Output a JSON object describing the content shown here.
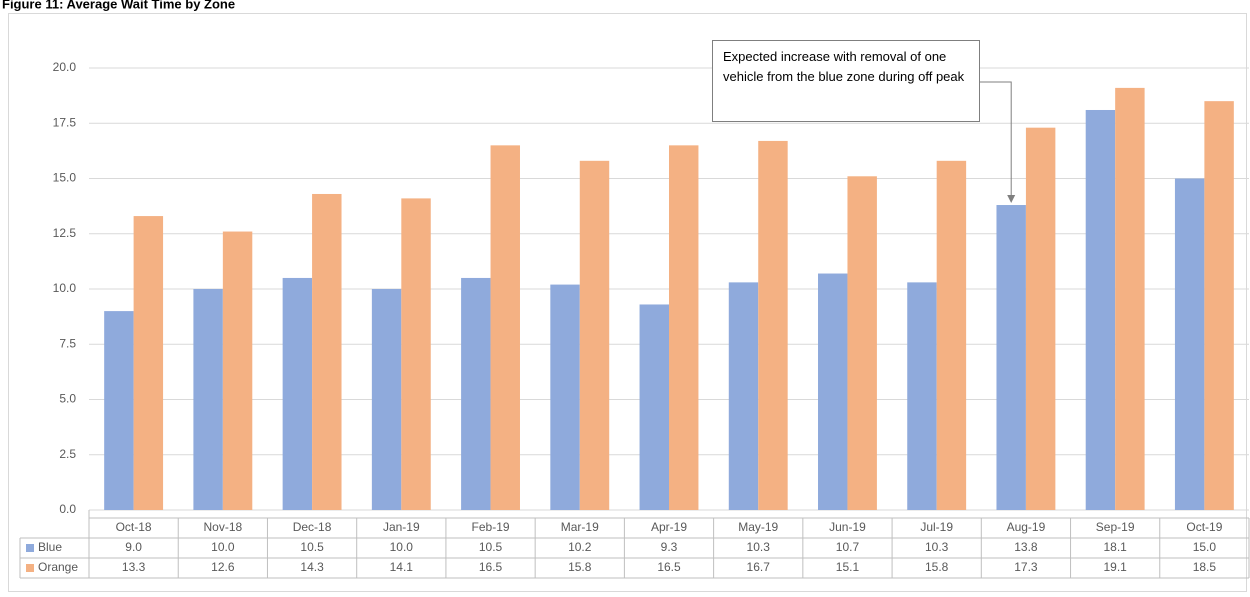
{
  "chart_data": {
    "type": "bar",
    "title": "Figure 11: Average Wait Time by Zone",
    "categories": [
      "Oct-18",
      "Nov-18",
      "Dec-18",
      "Jan-19",
      "Feb-19",
      "Mar-19",
      "Apr-19",
      "May-19",
      "Jun-19",
      "Jul-19",
      "Aug-19",
      "Sep-19",
      "Oct-19"
    ],
    "series": [
      {
        "name": "Blue",
        "color": "#8faadc",
        "values": [
          9.0,
          10.0,
          10.5,
          10.0,
          10.5,
          10.2,
          9.3,
          10.3,
          10.7,
          10.3,
          13.8,
          18.1,
          15.0
        ],
        "value_labels": [
          "9.0",
          "10.0",
          "10.5",
          "10.0",
          "10.5",
          "10.2",
          "9.3",
          "10.3",
          "10.7",
          "10.3",
          "13.8",
          "18.1",
          "15.0"
        ]
      },
      {
        "name": "Orange",
        "color": "#f4b183",
        "values": [
          13.3,
          12.6,
          14.3,
          14.1,
          16.5,
          15.8,
          16.5,
          16.7,
          15.1,
          15.8,
          17.3,
          19.1,
          18.5
        ],
        "value_labels": [
          "13.3",
          "12.6",
          "14.3",
          "14.1",
          "16.5",
          "15.8",
          "16.5",
          "16.7",
          "15.1",
          "15.8",
          "17.3",
          "19.1",
          "18.5"
        ]
      }
    ],
    "ylim": [
      0,
      20
    ],
    "yticks": [
      {
        "value": 0,
        "label": "0.0"
      },
      {
        "value": 2.5,
        "label": "2.5"
      },
      {
        "value": 5,
        "label": "5.0"
      },
      {
        "value": 7.5,
        "label": "7.5"
      },
      {
        "value": 10,
        "label": "10.0"
      },
      {
        "value": 12.5,
        "label": "12.5"
      },
      {
        "value": 15,
        "label": "15.0"
      },
      {
        "value": 17.5,
        "label": "17.5"
      },
      {
        "value": 20,
        "label": "20.0"
      }
    ],
    "grid": true,
    "annotation": "Expected increase with removal of one vehicle from the blue zone during off peak"
  }
}
